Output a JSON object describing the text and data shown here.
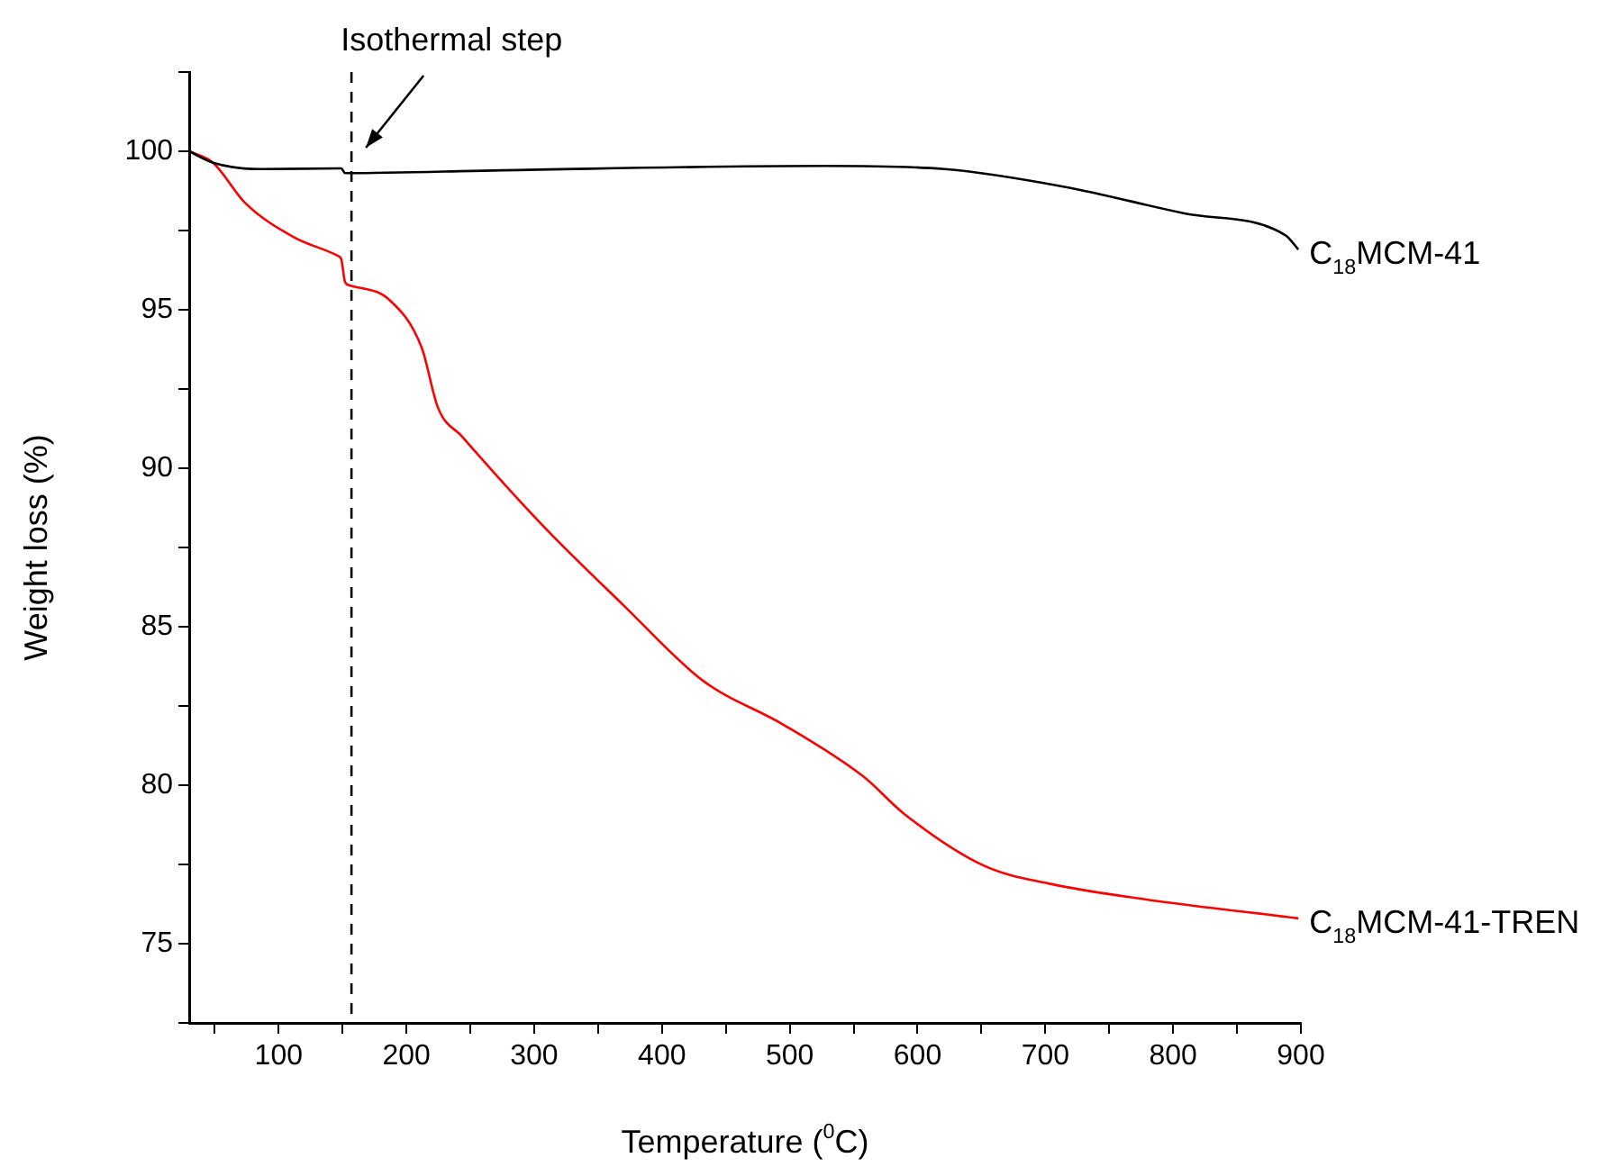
{
  "chart_data": {
    "type": "line",
    "xlabel": "Temperature ($^{0}$C)",
    "ylabel": "Weight loss (%)",
    "xlim": [
      30,
      900
    ],
    "ylim": [
      72.5,
      102.5
    ],
    "xticks": [
      {
        "value": 50,
        "label": null
      },
      100,
      {
        "value": 150,
        "label": null
      },
      200,
      {
        "value": 250,
        "label": null
      },
      300,
      {
        "value": 350,
        "label": null
      },
      400,
      {
        "value": 450,
        "label": null
      },
      500,
      {
        "value": 550,
        "label": null
      },
      600,
      {
        "value": 650,
        "label": null
      },
      700,
      {
        "value": 750,
        "label": null
      },
      800,
      {
        "value": 850,
        "label": null
      },
      900
    ],
    "yticks": [
      {
        "value": 72.5,
        "label": null
      },
      75,
      {
        "value": 77.5,
        "label": null
      },
      80,
      {
        "value": 82.5,
        "label": null
      },
      85,
      {
        "value": 87.5,
        "label": null
      },
      90,
      {
        "value": 92.5,
        "label": null
      },
      95,
      {
        "value": 97.5,
        "label": null
      },
      100,
      {
        "value": 102.5,
        "label": null
      }
    ],
    "grid": false,
    "legend": false,
    "marker": "none",
    "line_style": "solid",
    "ref_lines": [
      {
        "axis": "x",
        "value": 157,
        "label": "Isothermal step",
        "line_style": "dashed",
        "color": "#000000"
      }
    ],
    "series": [
      {
        "name": "C$_{18}$MCM-41",
        "color": "#000000",
        "x": [
          30,
          48.7,
          86,
          149,
          152,
          275,
          526,
          621,
          715,
          809,
          888,
          898
        ],
        "values": [
          100,
          99.64,
          99.44,
          99.46,
          99.31,
          99.4,
          99.54,
          99.44,
          98.88,
          98.04,
          97.35,
          96.9
        ]
      },
      {
        "name": "C$_{18}$MCM-41-TREN",
        "color": "#ff0000",
        "x": [
          30,
          48.7,
          73.8,
          111.5,
          146,
          149,
          152,
          155.6,
          187,
          212,
          224.8,
          243.6,
          306.5,
          369.3,
          432,
          495,
          558,
          589.4,
          652,
          702.5,
          778,
          898
        ],
        "values": [
          100,
          99.64,
          98.37,
          97.3,
          96.71,
          96.6,
          95.87,
          95.77,
          95.3,
          93.8,
          91.9,
          91,
          88.2,
          85.7,
          83.3,
          81.91,
          80.26,
          79.1,
          77.46,
          76.9,
          76.4,
          75.8
        ]
      }
    ]
  }
}
